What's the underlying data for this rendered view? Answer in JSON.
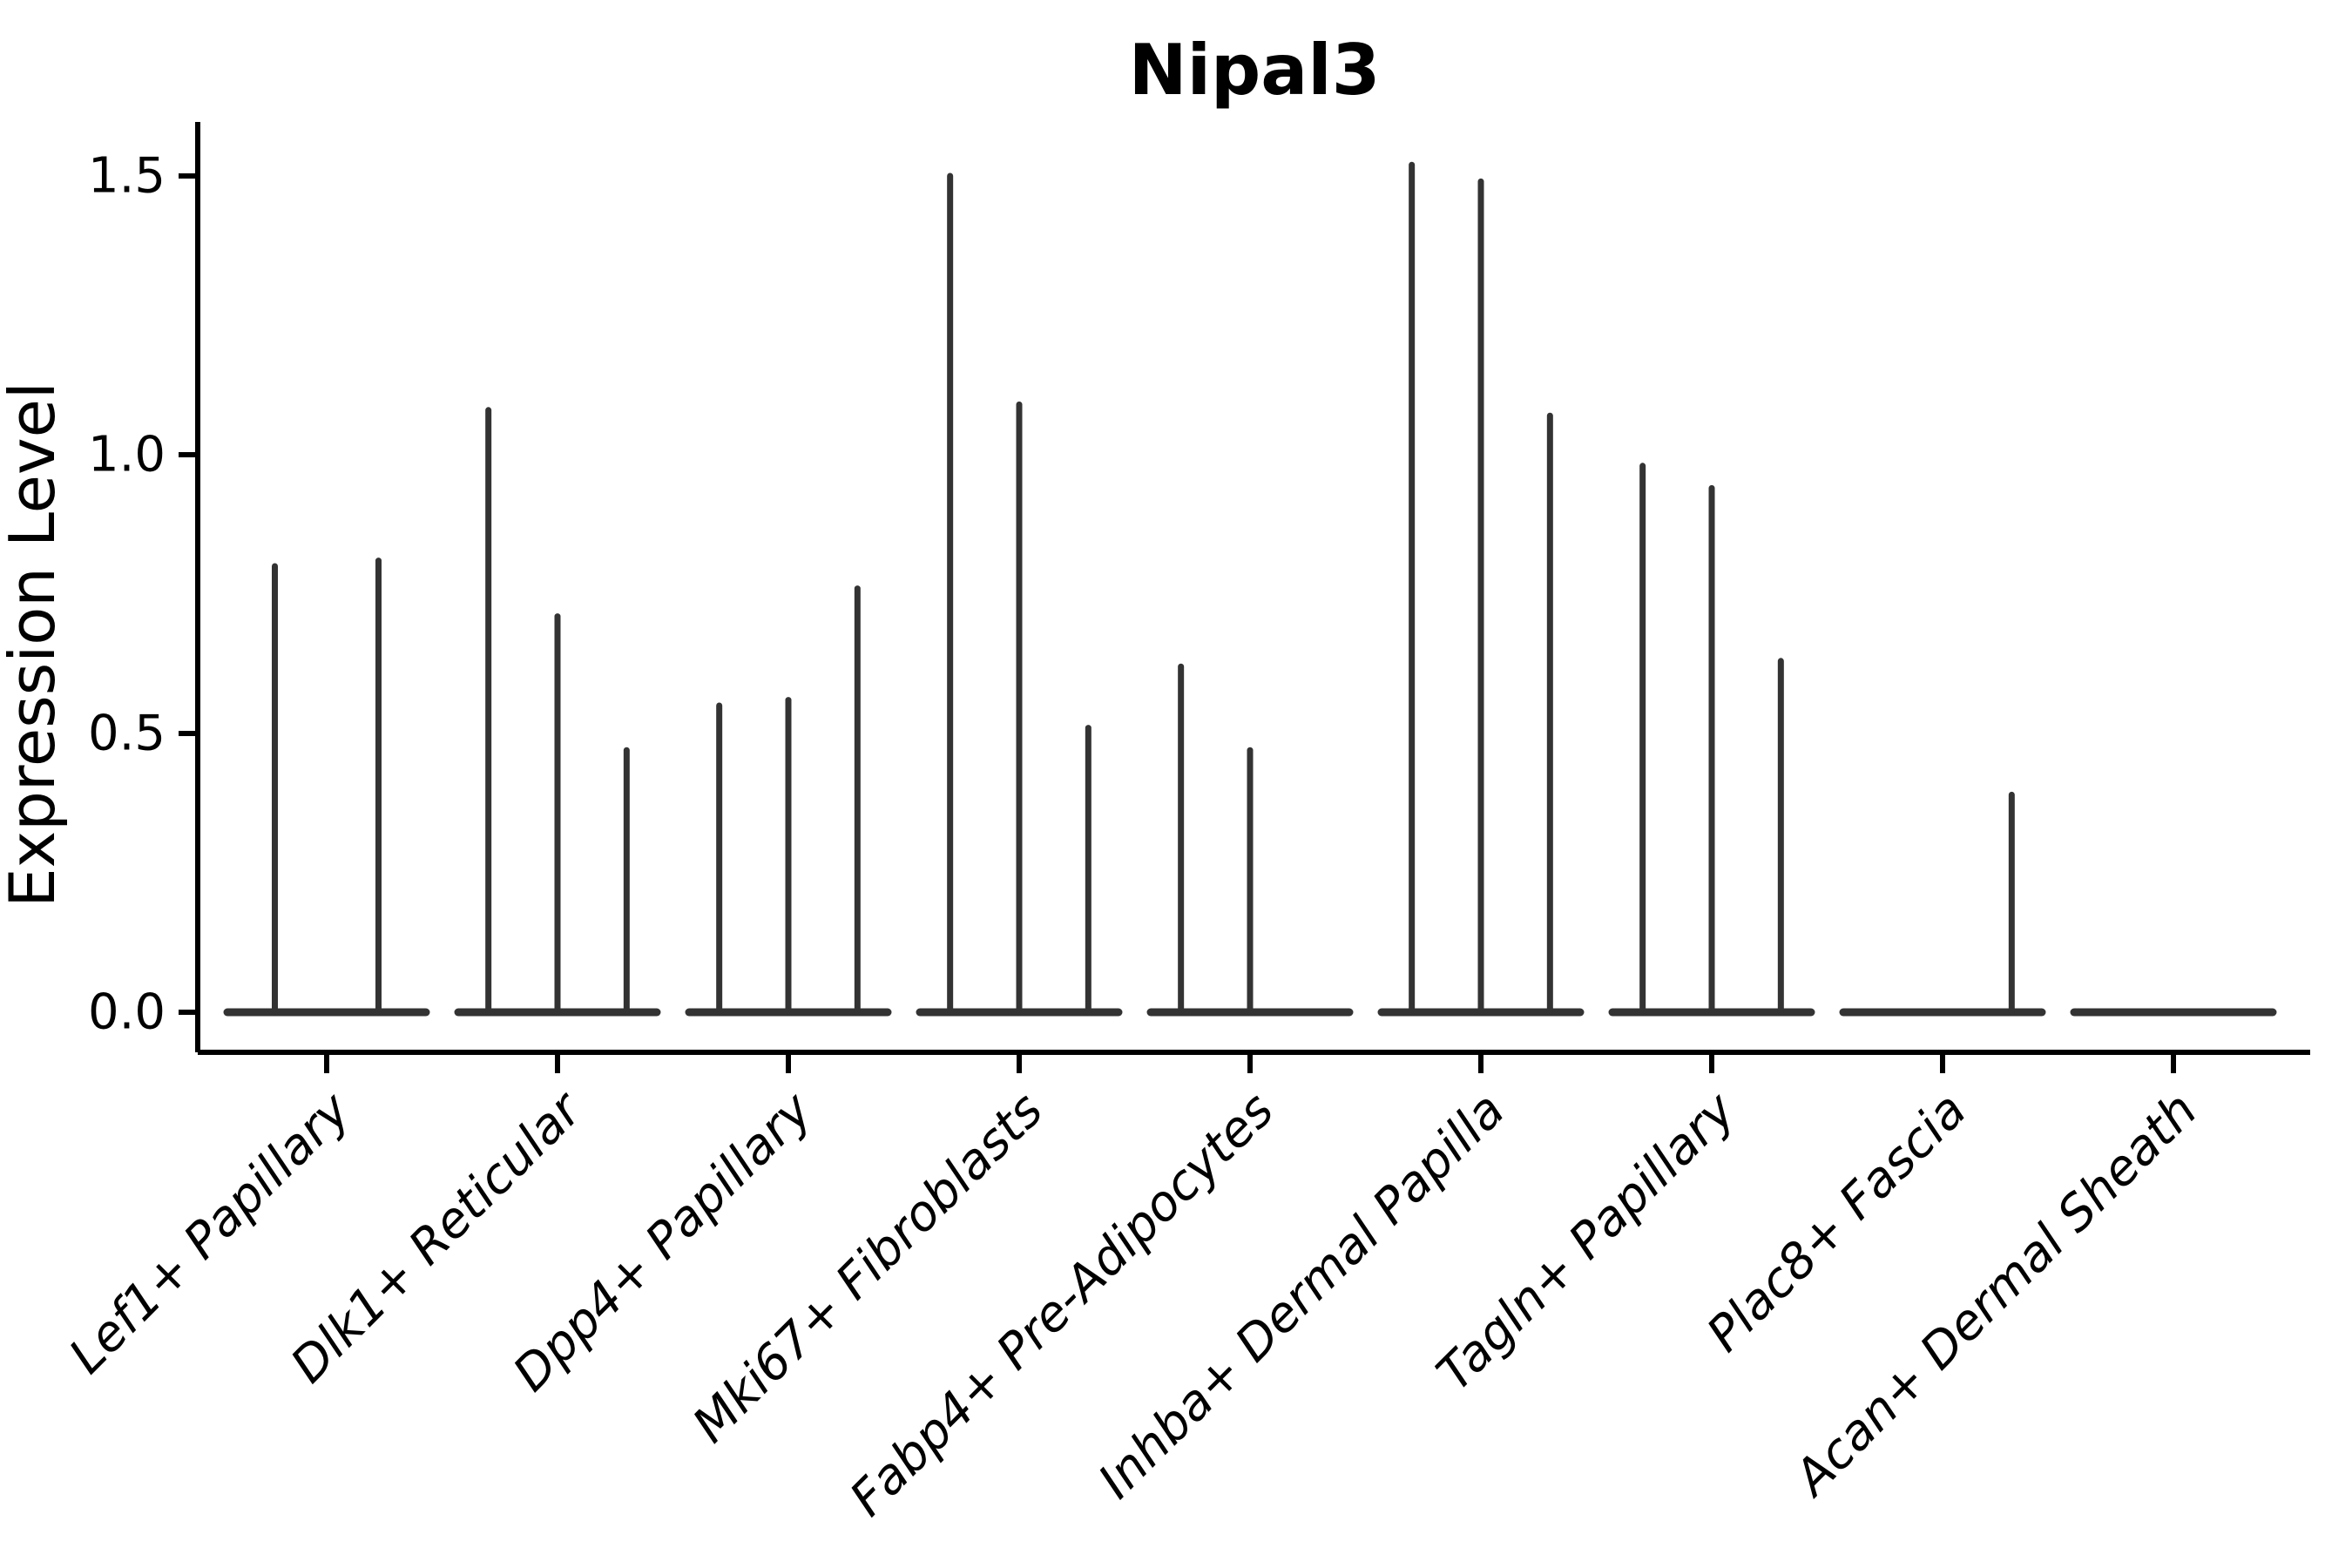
{
  "chart_data": {
    "type": "violin",
    "title": "Nipal3",
    "ylabel": "Expression Level",
    "xlabel": "",
    "ytick_labels": [
      "0.0",
      "0.5",
      "1.0",
      "1.5"
    ],
    "ytick_values": [
      0.0,
      0.5,
      1.0,
      1.5
    ],
    "ylim": [
      -0.07,
      1.6
    ],
    "grid": false,
    "legend": null,
    "x_tick_rotation": 45,
    "colors": {
      "violin": "#333333",
      "axis": "#000000",
      "text": "#000000",
      "background": "#ffffff"
    },
    "categories": [
      {
        "label": "Lef1+ Papillary",
        "violin_maxima": [
          0.8,
          0.81
        ]
      },
      {
        "label": "Dlk1+ Reticular",
        "violin_maxima": [
          1.08,
          0.71,
          0.47
        ]
      },
      {
        "label": "Dpp4+ Papillary",
        "violin_maxima": [
          0.55,
          0.56,
          0.76
        ]
      },
      {
        "label": "Mki67+ Fibroblasts",
        "violin_maxima": [
          1.5,
          1.09,
          0.51
        ]
      },
      {
        "label": "Fabp4+ Pre-Adipocytes",
        "violin_maxima": [
          0.62,
          0.47,
          0.0
        ]
      },
      {
        "label": "Inhba+ Dermal Papilla",
        "violin_maxima": [
          1.52,
          1.49,
          1.07
        ]
      },
      {
        "label": "Tagln+ Papillary",
        "violin_maxima": [
          0.98,
          0.94,
          0.63
        ]
      },
      {
        "label": "Plac8+ Fascia",
        "violin_maxima": [
          0.0,
          0.0,
          0.39
        ]
      },
      {
        "label": "Acan+ Dermal Sheath",
        "violin_maxima": [
          0.0,
          0.0,
          0.0
        ]
      }
    ]
  }
}
